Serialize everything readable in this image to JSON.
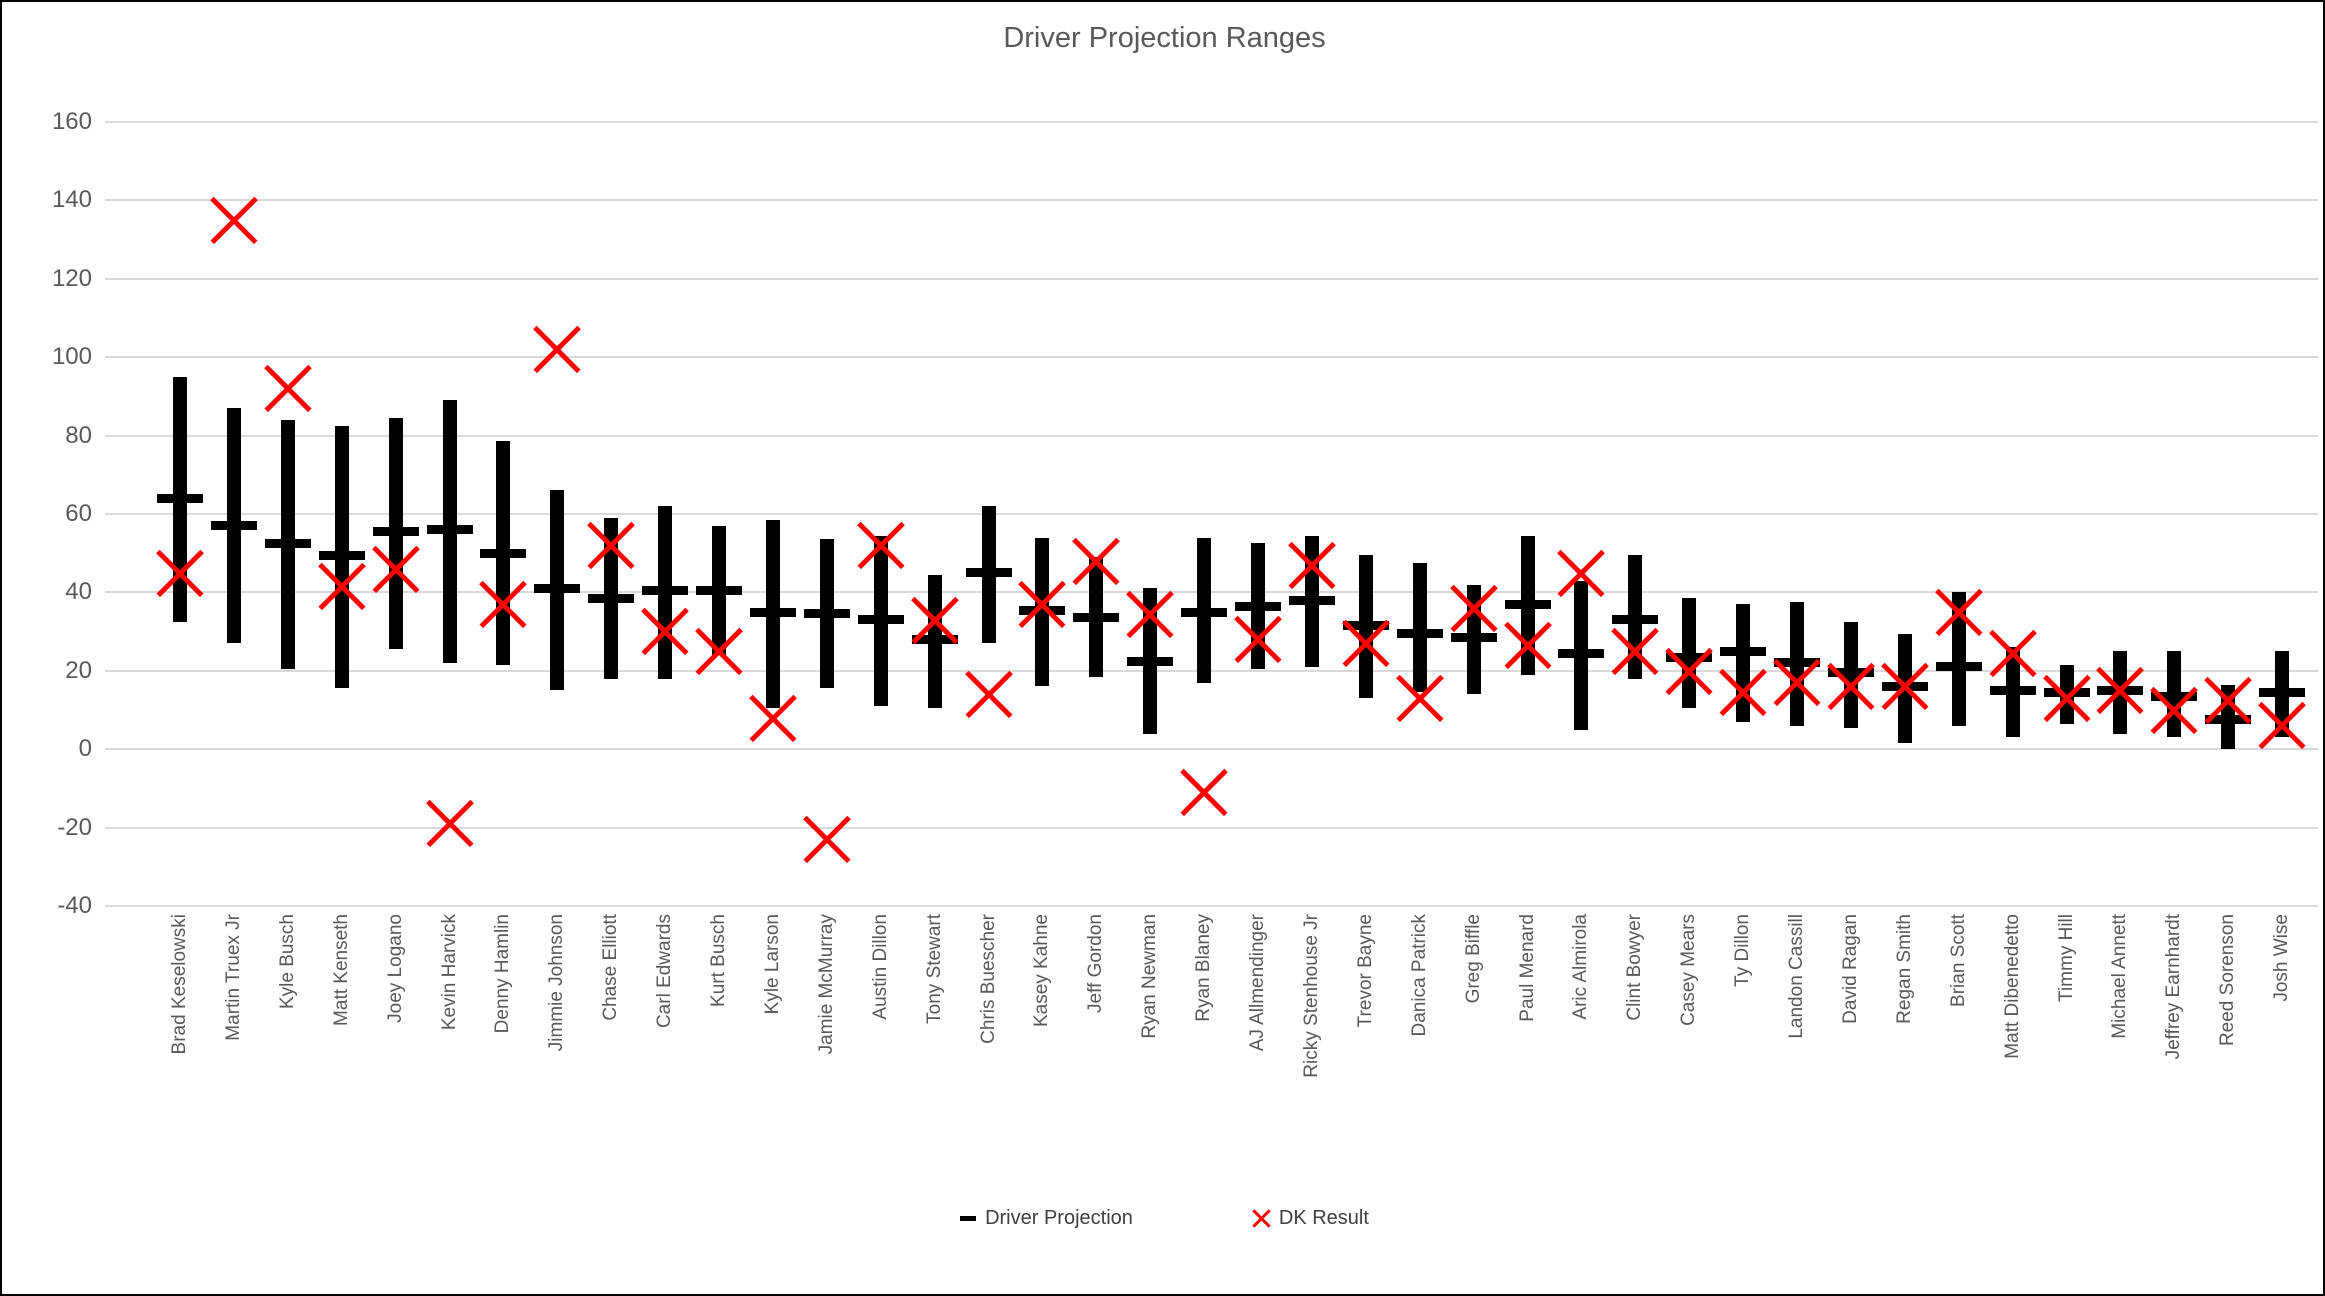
{
  "title": "Driver Projection Ranges",
  "legend": [
    {
      "label": "Driver Projection",
      "marker": "dash-icon",
      "color": "#000000"
    },
    {
      "label": "DK Result",
      "marker": "x-icon",
      "color": "#FF0000"
    }
  ],
  "colors": {
    "bar": "#000000",
    "dk_result": "#FF0000",
    "gridline": "#D9D9D9",
    "axis_text": "#595959"
  },
  "chart_data": {
    "type": "range-bar",
    "title": "Driver Projection Ranges",
    "xlabel": "",
    "ylabel": "",
    "ylim": [
      -40,
      160
    ],
    "y_ticks": [
      160,
      140,
      120,
      100,
      80,
      60,
      40,
      20,
      0,
      -20,
      -40
    ],
    "grid": true,
    "legend_position": "bottom",
    "series_names": [
      "Driver Projection",
      "DK Result"
    ],
    "drivers": [
      {
        "name": "Brad Keselowski",
        "low": 32.5,
        "high": 95,
        "projection": 64,
        "dk_result": 45
      },
      {
        "name": "Martin Truex Jr",
        "low": 27,
        "high": 87,
        "projection": 57,
        "dk_result": 135
      },
      {
        "name": "Kyle Busch",
        "low": 20.5,
        "high": 84,
        "projection": 52.5,
        "dk_result": 92
      },
      {
        "name": "Matt Kenseth",
        "low": 15.5,
        "high": 82.5,
        "projection": 49.5,
        "dk_result": 41.5
      },
      {
        "name": "Joey Logano",
        "low": 25.5,
        "high": 84.5,
        "projection": 55.5,
        "dk_result": 46
      },
      {
        "name": "Kevin Harvick",
        "low": 22,
        "high": 89,
        "projection": 56,
        "dk_result": -19
      },
      {
        "name": "Denny Hamlin",
        "low": 21.5,
        "high": 78.5,
        "projection": 50,
        "dk_result": 37
      },
      {
        "name": "Jimmie Johnson",
        "low": 15,
        "high": 66,
        "projection": 41,
        "dk_result": 102
      },
      {
        "name": "Chase Elliott",
        "low": 18,
        "high": 59,
        "projection": 38.5,
        "dk_result": 52
      },
      {
        "name": "Carl Edwards",
        "low": 18,
        "high": 62,
        "projection": 40.5,
        "dk_result": 30
      },
      {
        "name": "Kurt Busch",
        "low": 24,
        "high": 57,
        "projection": 40.5,
        "dk_result": 25
      },
      {
        "name": "Kyle Larson",
        "low": 10.5,
        "high": 58.5,
        "projection": 35,
        "dk_result": 8
      },
      {
        "name": "Jamie McMurray",
        "low": 15.5,
        "high": 53.5,
        "projection": 34.5,
        "dk_result": -23
      },
      {
        "name": "Austin Dillon",
        "low": 11,
        "high": 54.5,
        "projection": 33,
        "dk_result": 52
      },
      {
        "name": "Tony Stewart",
        "low": 10.5,
        "high": 44.5,
        "projection": 28,
        "dk_result": 33
      },
      {
        "name": "Chris Buescher",
        "low": 27,
        "high": 62,
        "projection": 45,
        "dk_result": 14
      },
      {
        "name": "Kasey Kahne",
        "low": 16,
        "high": 54,
        "projection": 35.5,
        "dk_result": 37
      },
      {
        "name": "Jeff Gordon",
        "low": 18.5,
        "high": 49,
        "projection": 33.5,
        "dk_result": 48
      },
      {
        "name": "Ryan Newman",
        "low": 4,
        "high": 41,
        "projection": 22.5,
        "dk_result": 34.5
      },
      {
        "name": "Ryan Blaney",
        "low": 17,
        "high": 54,
        "projection": 35,
        "dk_result": -11
      },
      {
        "name": "AJ Allmendinger",
        "low": 20.5,
        "high": 52.5,
        "projection": 36.5,
        "dk_result": 28
      },
      {
        "name": "Ricky Stenhouse Jr",
        "low": 21,
        "high": 54.5,
        "projection": 38,
        "dk_result": 47
      },
      {
        "name": "Trevor Bayne",
        "low": 13,
        "high": 49.5,
        "projection": 31.5,
        "dk_result": 27
      },
      {
        "name": "Danica Patrick",
        "low": 14.5,
        "high": 47.5,
        "projection": 29.5,
        "dk_result": 13
      },
      {
        "name": "Greg Biffle",
        "low": 14,
        "high": 42,
        "projection": 28.5,
        "dk_result": 36
      },
      {
        "name": "Paul Menard",
        "low": 19,
        "high": 54.5,
        "projection": 37,
        "dk_result": 26.5
      },
      {
        "name": "Aric Almirola",
        "low": 5,
        "high": 43,
        "projection": 24.5,
        "dk_result": 45
      },
      {
        "name": "Clint Bowyer",
        "low": 18,
        "high": 49.5,
        "projection": 33,
        "dk_result": 25
      },
      {
        "name": "Casey Mears",
        "low": 10.5,
        "high": 38.5,
        "projection": 23.5,
        "dk_result": 20
      },
      {
        "name": "Ty Dillon",
        "low": 7,
        "high": 37,
        "projection": 25,
        "dk_result": 14.5
      },
      {
        "name": "Landon Cassill",
        "low": 6,
        "high": 37.5,
        "projection": 22,
        "dk_result": 17
      },
      {
        "name": "David Ragan",
        "low": 5.5,
        "high": 32.5,
        "projection": 19.5,
        "dk_result": 16
      },
      {
        "name": "Regan Smith",
        "low": 1.5,
        "high": 29.5,
        "projection": 16,
        "dk_result": 16
      },
      {
        "name": "Brian Scott",
        "low": 6,
        "high": 40,
        "projection": 21,
        "dk_result": 35
      },
      {
        "name": "Matt Dibenedetto",
        "low": 3,
        "high": 26,
        "projection": 15,
        "dk_result": 24.5
      },
      {
        "name": "Timmy Hill",
        "low": 6.5,
        "high": 21.5,
        "projection": 14.5,
        "dk_result": 13
      },
      {
        "name": "Michael Annett",
        "low": 4,
        "high": 25,
        "projection": 15,
        "dk_result": 15
      },
      {
        "name": "Jeffrey Earnhardt",
        "low": 3,
        "high": 25,
        "projection": 13.5,
        "dk_result": 10
      },
      {
        "name": "Reed Sorenson",
        "low": 0,
        "high": 16.5,
        "projection": 7.5,
        "dk_result": 12.5
      },
      {
        "name": "Josh Wise",
        "low": 3,
        "high": 25,
        "projection": 14.5,
        "dk_result": 6
      }
    ]
  }
}
